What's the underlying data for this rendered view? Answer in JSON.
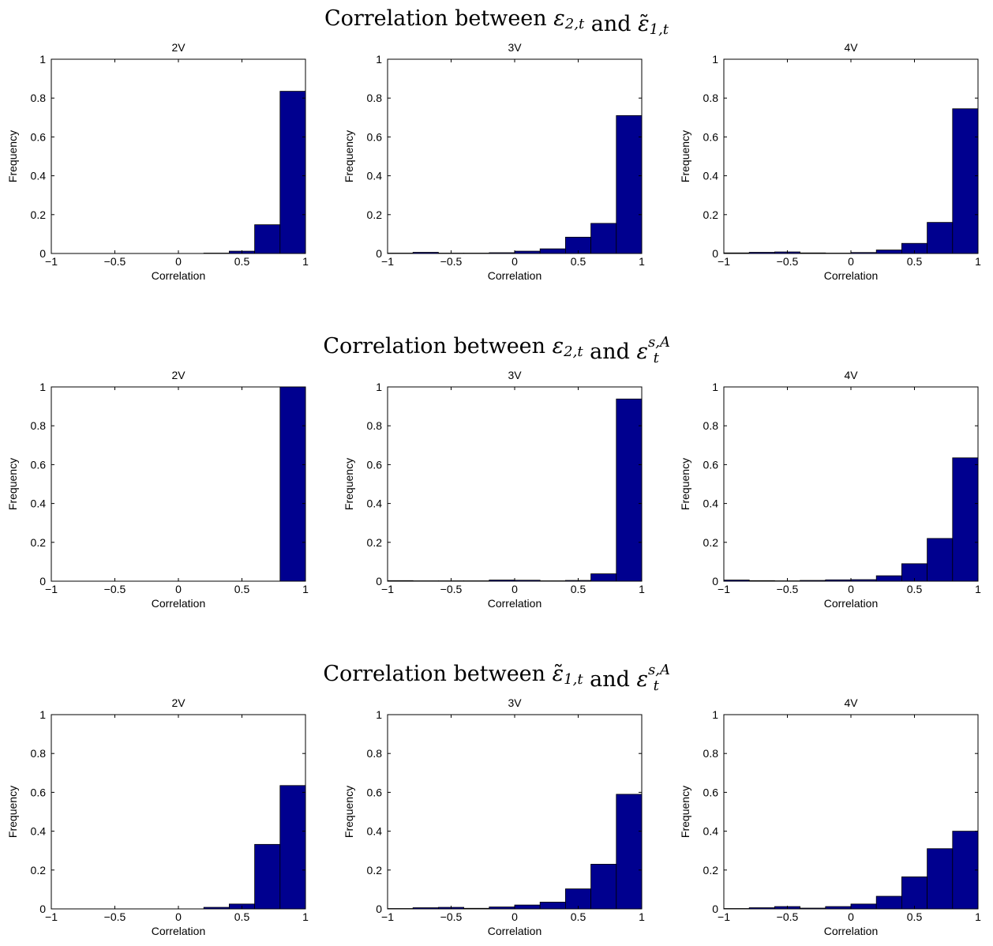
{
  "figure": {
    "row_titles": [
      {
        "prefix": "Correlation between ",
        "a_sym": "ε",
        "a_sub": "2,t",
        "a_tilde": false,
        "mid": " and ",
        "b_sym": "ε",
        "b_sub": "1,t",
        "b_sup": "",
        "b_tilde": true
      },
      {
        "prefix": "Correlation between ",
        "a_sym": "ε",
        "a_sub": "2,t",
        "a_tilde": false,
        "mid": " and ",
        "b_sym": "ε",
        "b_sub": "t",
        "b_sup": "s,A",
        "b_tilde": false
      },
      {
        "prefix": "Correlation between ",
        "a_sym": "ε",
        "a_sub": "1,t",
        "a_tilde": true,
        "mid": " and ",
        "b_sym": "ε",
        "b_sub": "t",
        "b_sup": "s,A",
        "b_tilde": false
      }
    ],
    "bar_color": "#00008f"
  },
  "chart_data": [
    {
      "type": "bar",
      "title": "2V",
      "xlabel": "Correlation",
      "ylabel": "Frequency",
      "xlim": [
        -1,
        1
      ],
      "ylim": [
        0,
        1
      ],
      "bin_width": 0.2,
      "bin_centers": [
        -0.9,
        -0.7,
        -0.5,
        -0.3,
        -0.1,
        0.1,
        0.3,
        0.5,
        0.7,
        0.9
      ],
      "values": [
        0,
        0,
        0,
        0,
        0,
        0,
        0.002,
        0.012,
        0.148,
        0.835
      ],
      "xticks": [
        -1,
        -0.5,
        0,
        0.5,
        1
      ],
      "yticks": [
        0,
        0.2,
        0.4,
        0.6,
        0.8,
        1
      ],
      "xtick_labels": [
        "−1",
        "−0.5",
        "0",
        "0.5",
        "1"
      ],
      "ytick_labels": [
        "0",
        "0.2",
        "0.4",
        "0.6",
        "0.8",
        "1"
      ]
    },
    {
      "type": "bar",
      "title": "3V",
      "xlabel": "Correlation",
      "ylabel": "Frequency",
      "xlim": [
        -1,
        1
      ],
      "ylim": [
        0,
        1
      ],
      "bin_width": 0.2,
      "bin_centers": [
        -0.9,
        -0.7,
        -0.5,
        -0.3,
        -0.1,
        0.1,
        0.3,
        0.5,
        0.7,
        0.9
      ],
      "values": [
        0.002,
        0.006,
        0.002,
        0.002,
        0.004,
        0.012,
        0.024,
        0.084,
        0.155,
        0.71
      ],
      "xticks": [
        -1,
        -0.5,
        0,
        0.5,
        1
      ],
      "yticks": [
        0,
        0.2,
        0.4,
        0.6,
        0.8,
        1
      ],
      "xtick_labels": [
        "−1",
        "−0.5",
        "0",
        "0.5",
        "1"
      ],
      "ytick_labels": [
        "0",
        "0.2",
        "0.4",
        "0.6",
        "0.8",
        "1"
      ]
    },
    {
      "type": "bar",
      "title": "4V",
      "xlabel": "Correlation",
      "ylabel": "Frequency",
      "xlim": [
        -1,
        1
      ],
      "ylim": [
        0,
        1
      ],
      "bin_width": 0.2,
      "bin_centers": [
        -0.9,
        -0.7,
        -0.5,
        -0.3,
        -0.1,
        0.1,
        0.3,
        0.5,
        0.7,
        0.9
      ],
      "values": [
        0.003,
        0.006,
        0.008,
        0.003,
        0.002,
        0.005,
        0.018,
        0.052,
        0.16,
        0.745
      ],
      "xticks": [
        -1,
        -0.5,
        0,
        0.5,
        1
      ],
      "yticks": [
        0,
        0.2,
        0.4,
        0.6,
        0.8,
        1
      ],
      "xtick_labels": [
        "−1",
        "−0.5",
        "0",
        "0.5",
        "1"
      ],
      "ytick_labels": [
        "0",
        "0.2",
        "0.4",
        "0.6",
        "0.8",
        "1"
      ]
    },
    {
      "type": "bar",
      "title": "2V",
      "xlabel": "Correlation",
      "ylabel": "Frequency",
      "xlim": [
        -1,
        1
      ],
      "ylim": [
        0,
        1
      ],
      "bin_width": 0.2,
      "bin_centers": [
        -0.9,
        -0.7,
        -0.5,
        -0.3,
        -0.1,
        0.1,
        0.3,
        0.5,
        0.7,
        0.9
      ],
      "values": [
        0,
        0,
        0,
        0,
        0,
        0,
        0,
        0,
        0,
        1.0
      ],
      "xticks": [
        -1,
        -0.5,
        0,
        0.5,
        1
      ],
      "yticks": [
        0,
        0.2,
        0.4,
        0.6,
        0.8,
        1
      ],
      "xtick_labels": [
        "−1",
        "−0.5",
        "0",
        "0.5",
        "1"
      ],
      "ytick_labels": [
        "0",
        "0.2",
        "0.4",
        "0.6",
        "0.8",
        "1"
      ]
    },
    {
      "type": "bar",
      "title": "3V",
      "xlabel": "Correlation",
      "ylabel": "Frequency",
      "xlim": [
        -1,
        1
      ],
      "ylim": [
        0,
        1
      ],
      "bin_width": 0.2,
      "bin_centers": [
        -0.9,
        -0.7,
        -0.5,
        -0.3,
        -0.1,
        0.1,
        0.3,
        0.5,
        0.7,
        0.9
      ],
      "values": [
        0.003,
        0.002,
        0.002,
        0.002,
        0.006,
        0.005,
        0.002,
        0.004,
        0.038,
        0.938
      ],
      "xticks": [
        -1,
        -0.5,
        0,
        0.5,
        1
      ],
      "yticks": [
        0,
        0.2,
        0.4,
        0.6,
        0.8,
        1
      ],
      "xtick_labels": [
        "−1",
        "−0.5",
        "0",
        "0.5",
        "1"
      ],
      "ytick_labels": [
        "0",
        "0.2",
        "0.4",
        "0.6",
        "0.8",
        "1"
      ]
    },
    {
      "type": "bar",
      "title": "4V",
      "xlabel": "Correlation",
      "ylabel": "Frequency",
      "xlim": [
        -1,
        1
      ],
      "ylim": [
        0,
        1
      ],
      "bin_width": 0.2,
      "bin_centers": [
        -0.9,
        -0.7,
        -0.5,
        -0.3,
        -0.1,
        0.1,
        0.3,
        0.5,
        0.7,
        0.9
      ],
      "values": [
        0.006,
        0.003,
        0.002,
        0.004,
        0.007,
        0.008,
        0.028,
        0.09,
        0.22,
        0.635
      ],
      "xticks": [
        -1,
        -0.5,
        0,
        0.5,
        1
      ],
      "yticks": [
        0,
        0.2,
        0.4,
        0.6,
        0.8,
        1
      ],
      "xtick_labels": [
        "−1",
        "−0.5",
        "0",
        "0.5",
        "1"
      ],
      "ytick_labels": [
        "0",
        "0.2",
        "0.4",
        "0.6",
        "0.8",
        "1"
      ]
    },
    {
      "type": "bar",
      "title": "2V",
      "xlabel": "Correlation",
      "ylabel": "Frequency",
      "xlim": [
        -1,
        1
      ],
      "ylim": [
        0,
        1
      ],
      "bin_width": 0.2,
      "bin_centers": [
        -0.9,
        -0.7,
        -0.5,
        -0.3,
        -0.1,
        0.1,
        0.3,
        0.5,
        0.7,
        0.9
      ],
      "values": [
        0,
        0,
        0,
        0,
        0,
        0,
        0.008,
        0.025,
        0.332,
        0.635
      ],
      "xticks": [
        -1,
        -0.5,
        0,
        0.5,
        1
      ],
      "yticks": [
        0,
        0.2,
        0.4,
        0.6,
        0.8,
        1
      ],
      "xtick_labels": [
        "−1",
        "−0.5",
        "0",
        "0.5",
        "1"
      ],
      "ytick_labels": [
        "0",
        "0.2",
        "0.4",
        "0.6",
        "0.8",
        "1"
      ]
    },
    {
      "type": "bar",
      "title": "3V",
      "xlabel": "Correlation",
      "ylabel": "Frequency",
      "xlim": [
        -1,
        1
      ],
      "ylim": [
        0,
        1
      ],
      "bin_width": 0.2,
      "bin_centers": [
        -0.9,
        -0.7,
        -0.5,
        -0.3,
        -0.1,
        0.1,
        0.3,
        0.5,
        0.7,
        0.9
      ],
      "values": [
        0.002,
        0.006,
        0.008,
        0.003,
        0.01,
        0.02,
        0.035,
        0.103,
        0.23,
        0.59
      ],
      "xticks": [
        -1,
        -0.5,
        0,
        0.5,
        1
      ],
      "yticks": [
        0,
        0.2,
        0.4,
        0.6,
        0.8,
        1
      ],
      "xtick_labels": [
        "−1",
        "−0.5",
        "0",
        "0.5",
        "1"
      ],
      "ytick_labels": [
        "0",
        "0.2",
        "0.4",
        "0.6",
        "0.8",
        "1"
      ]
    },
    {
      "type": "bar",
      "title": "4V",
      "xlabel": "Correlation",
      "ylabel": "Frequency",
      "xlim": [
        -1,
        1
      ],
      "ylim": [
        0,
        1
      ],
      "bin_width": 0.2,
      "bin_centers": [
        -0.9,
        -0.7,
        -0.5,
        -0.3,
        -0.1,
        0.1,
        0.3,
        0.5,
        0.7,
        0.9
      ],
      "values": [
        0.002,
        0.006,
        0.012,
        0.004,
        0.012,
        0.025,
        0.065,
        0.165,
        0.31,
        0.4
      ],
      "xticks": [
        -1,
        -0.5,
        0,
        0.5,
        1
      ],
      "yticks": [
        0,
        0.2,
        0.4,
        0.6,
        0.8,
        1
      ],
      "xtick_labels": [
        "−1",
        "−0.5",
        "0",
        "0.5",
        "1"
      ],
      "ytick_labels": [
        "0",
        "0.2",
        "0.4",
        "0.6",
        "0.8",
        "1"
      ]
    }
  ]
}
